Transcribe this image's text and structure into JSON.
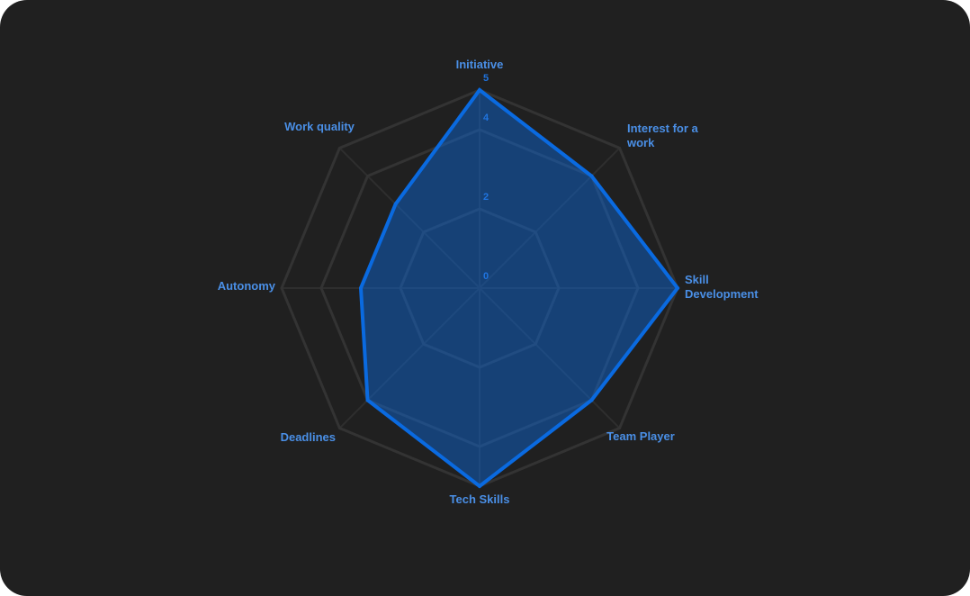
{
  "chart_data": {
    "type": "radar",
    "categories": [
      "Initiative",
      "Interest for a work",
      "Skill Development",
      "Team Player",
      "Tech Skills",
      "Deadlines",
      "Autonomy",
      "Work quality"
    ],
    "series": [
      {
        "color": "#0a6ae0",
        "values": [
          5,
          4,
          5,
          4,
          5,
          4,
          3,
          3
        ]
      }
    ],
    "rlim": [
      0,
      5
    ],
    "rticks": [
      0,
      2,
      4,
      5
    ],
    "grid": true
  }
}
